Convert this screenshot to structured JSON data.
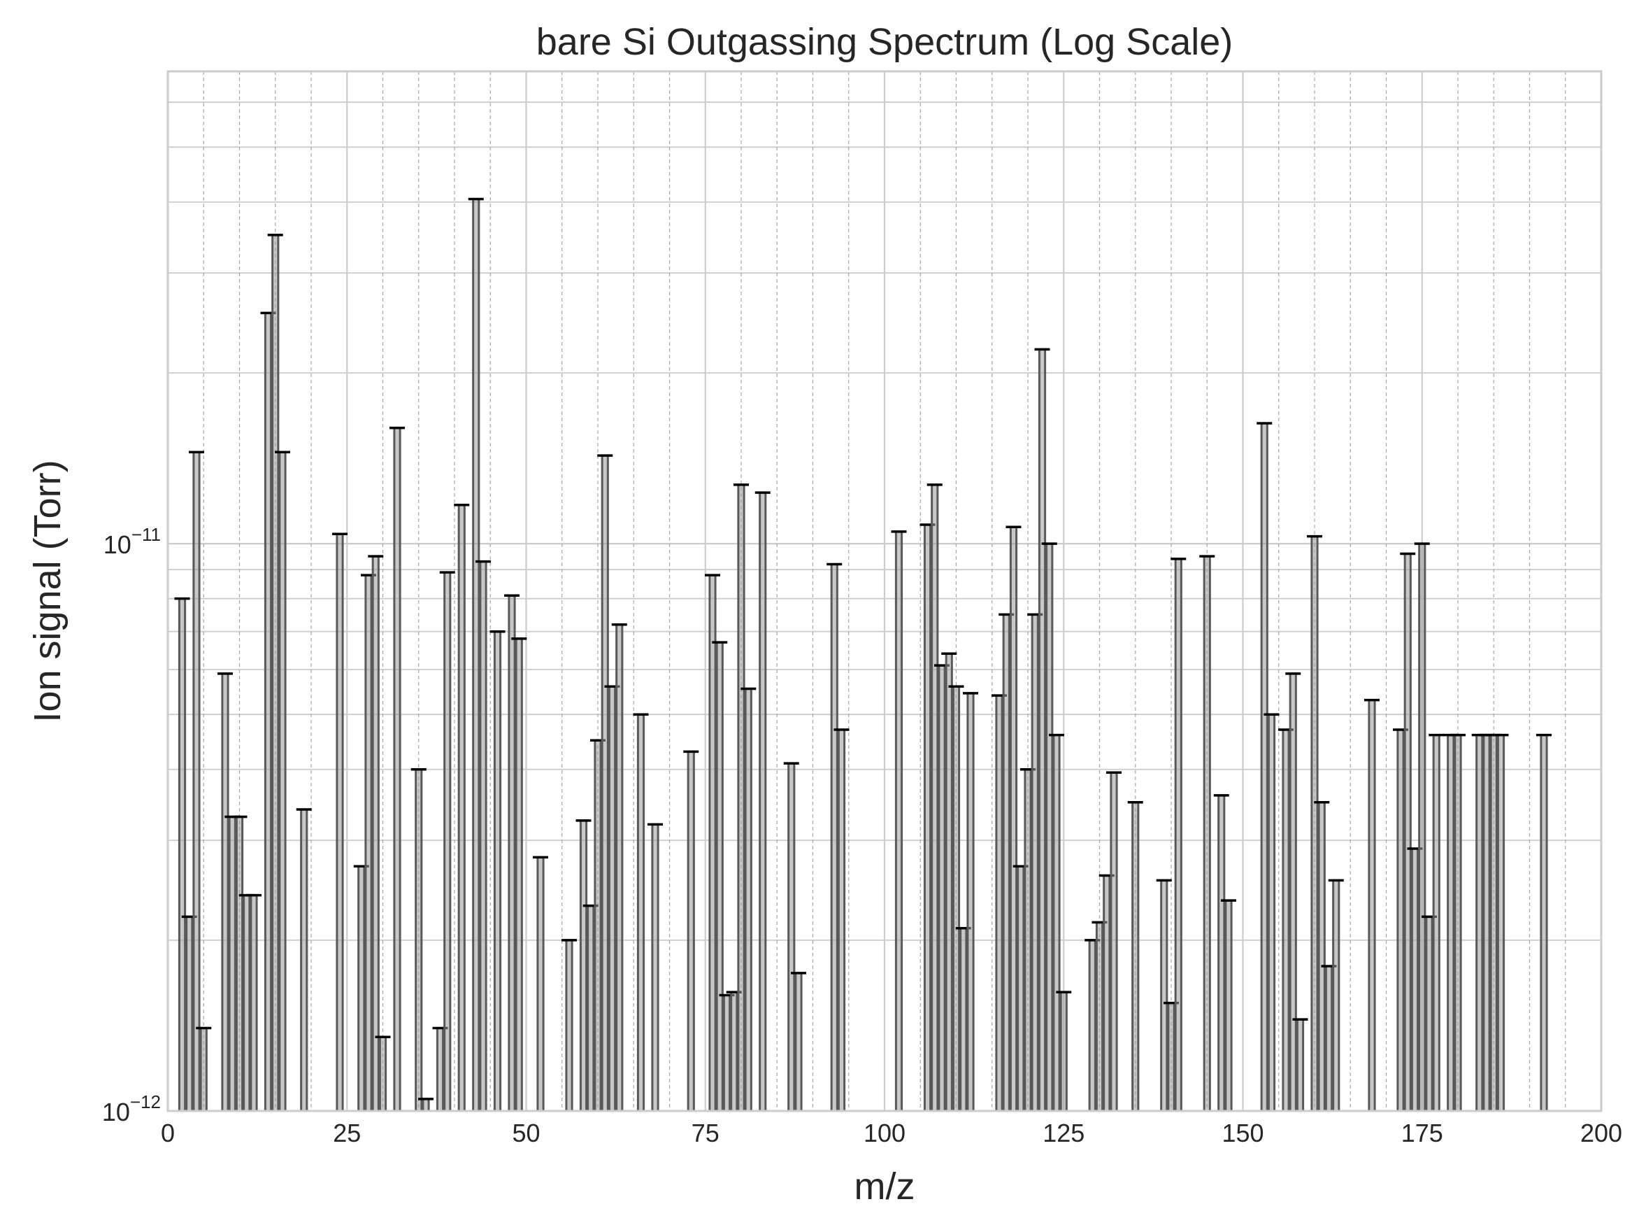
{
  "chart_data": {
    "type": "bar",
    "title": "bare Si Outgassing Spectrum (Log Scale)",
    "xlabel": "m/z",
    "ylabel": "Ion signal (Torr)",
    "xlim": [
      0,
      200
    ],
    "ylim": [
      1e-12,
      6.8e-11
    ],
    "y_scale": "log",
    "x_ticks": [
      "0",
      "25",
      "50",
      "75",
      "100",
      "125",
      "150",
      "175",
      "200"
    ],
    "y_ticks": [
      {
        "base": "10",
        "exp": "−12",
        "value": 1e-12
      },
      {
        "base": "10",
        "exp": "−11",
        "value": 1e-11
      }
    ],
    "grid": true,
    "error_bar_caps": true,
    "colors": {
      "bar_edge": "#595959",
      "bar_fill": "#9a9a9a",
      "cap": "#000000",
      "grid": "#cccccc",
      "minor_grid": "#a6a6a6"
    },
    "x": [
      2,
      3,
      4,
      5,
      8,
      9,
      10,
      11,
      12,
      14,
      15,
      16,
      19,
      24,
      27,
      28,
      29,
      30,
      32,
      35,
      36,
      38,
      39,
      41,
      43,
      44,
      46,
      48,
      49,
      52,
      56,
      58,
      59,
      60,
      61,
      62,
      63,
      66,
      68,
      73,
      76,
      77,
      78,
      79,
      80,
      81,
      83,
      87,
      88,
      93,
      94,
      102,
      106,
      107,
      108,
      109,
      110,
      111,
      112,
      116,
      117,
      118,
      119,
      120,
      121,
      122,
      123,
      124,
      125,
      129,
      130,
      131,
      132,
      135,
      139,
      140,
      141,
      145,
      147,
      148,
      153,
      154,
      156,
      157,
      158,
      160,
      161,
      162,
      163,
      168,
      172,
      173,
      174,
      175,
      176,
      177,
      179,
      180,
      183,
      184,
      185,
      186,
      192
    ],
    "values": [
      8e-12,
      2.2e-12,
      1.45e-11,
      1.4e-12,
      5.9e-12,
      3.3e-12,
      3.3e-12,
      2.4e-12,
      2.4e-12,
      2.55e-11,
      3.5e-11,
      1.45e-11,
      3.4e-12,
      1.04e-11,
      2.7e-12,
      8.8e-12,
      9.5e-12,
      1.35e-12,
      1.6e-11,
      4e-12,
      1.05e-12,
      1.4e-12,
      8.9e-12,
      1.17e-11,
      4.05e-11,
      9.3e-12,
      7e-12,
      8.1e-12,
      6.8e-12,
      2.8e-12,
      2e-12,
      3.25e-12,
      2.3e-12,
      4.5e-12,
      1.43e-11,
      5.6e-12,
      7.2e-12,
      5e-12,
      3.2e-12,
      4.3e-12,
      8.8e-12,
      6.7e-12,
      1.6e-12,
      1.62e-12,
      1.27e-11,
      5.55e-12,
      1.23e-11,
      4.1e-12,
      1.75e-12,
      9.2e-12,
      4.7e-12,
      1.05e-11,
      1.08e-11,
      1.27e-11,
      6.1e-12,
      6.4e-12,
      5.6e-12,
      2.1e-12,
      5.45e-12,
      5.4e-12,
      7.5e-12,
      1.07e-11,
      2.7e-12,
      4e-12,
      7.5e-12,
      2.2e-11,
      1e-11,
      4.6e-12,
      1.62e-12,
      2e-12,
      2.15e-12,
      2.6e-12,
      3.95e-12,
      3.5e-12,
      2.55e-12,
      1.55e-12,
      9.4e-12,
      9.5e-12,
      3.6e-12,
      2.35e-12,
      1.63e-11,
      5e-12,
      4.7e-12,
      5.9e-12,
      1.45e-12,
      1.03e-11,
      3.5e-12,
      1.8e-12,
      2.55e-12,
      5.3e-12,
      4.7e-12,
      9.6e-12,
      2.9e-12,
      1e-11,
      2.2e-12,
      4.6e-12,
      4.6e-12,
      4.6e-12,
      4.6e-12,
      4.6e-12,
      4.6e-12,
      4.6e-12,
      4.6e-12
    ]
  }
}
